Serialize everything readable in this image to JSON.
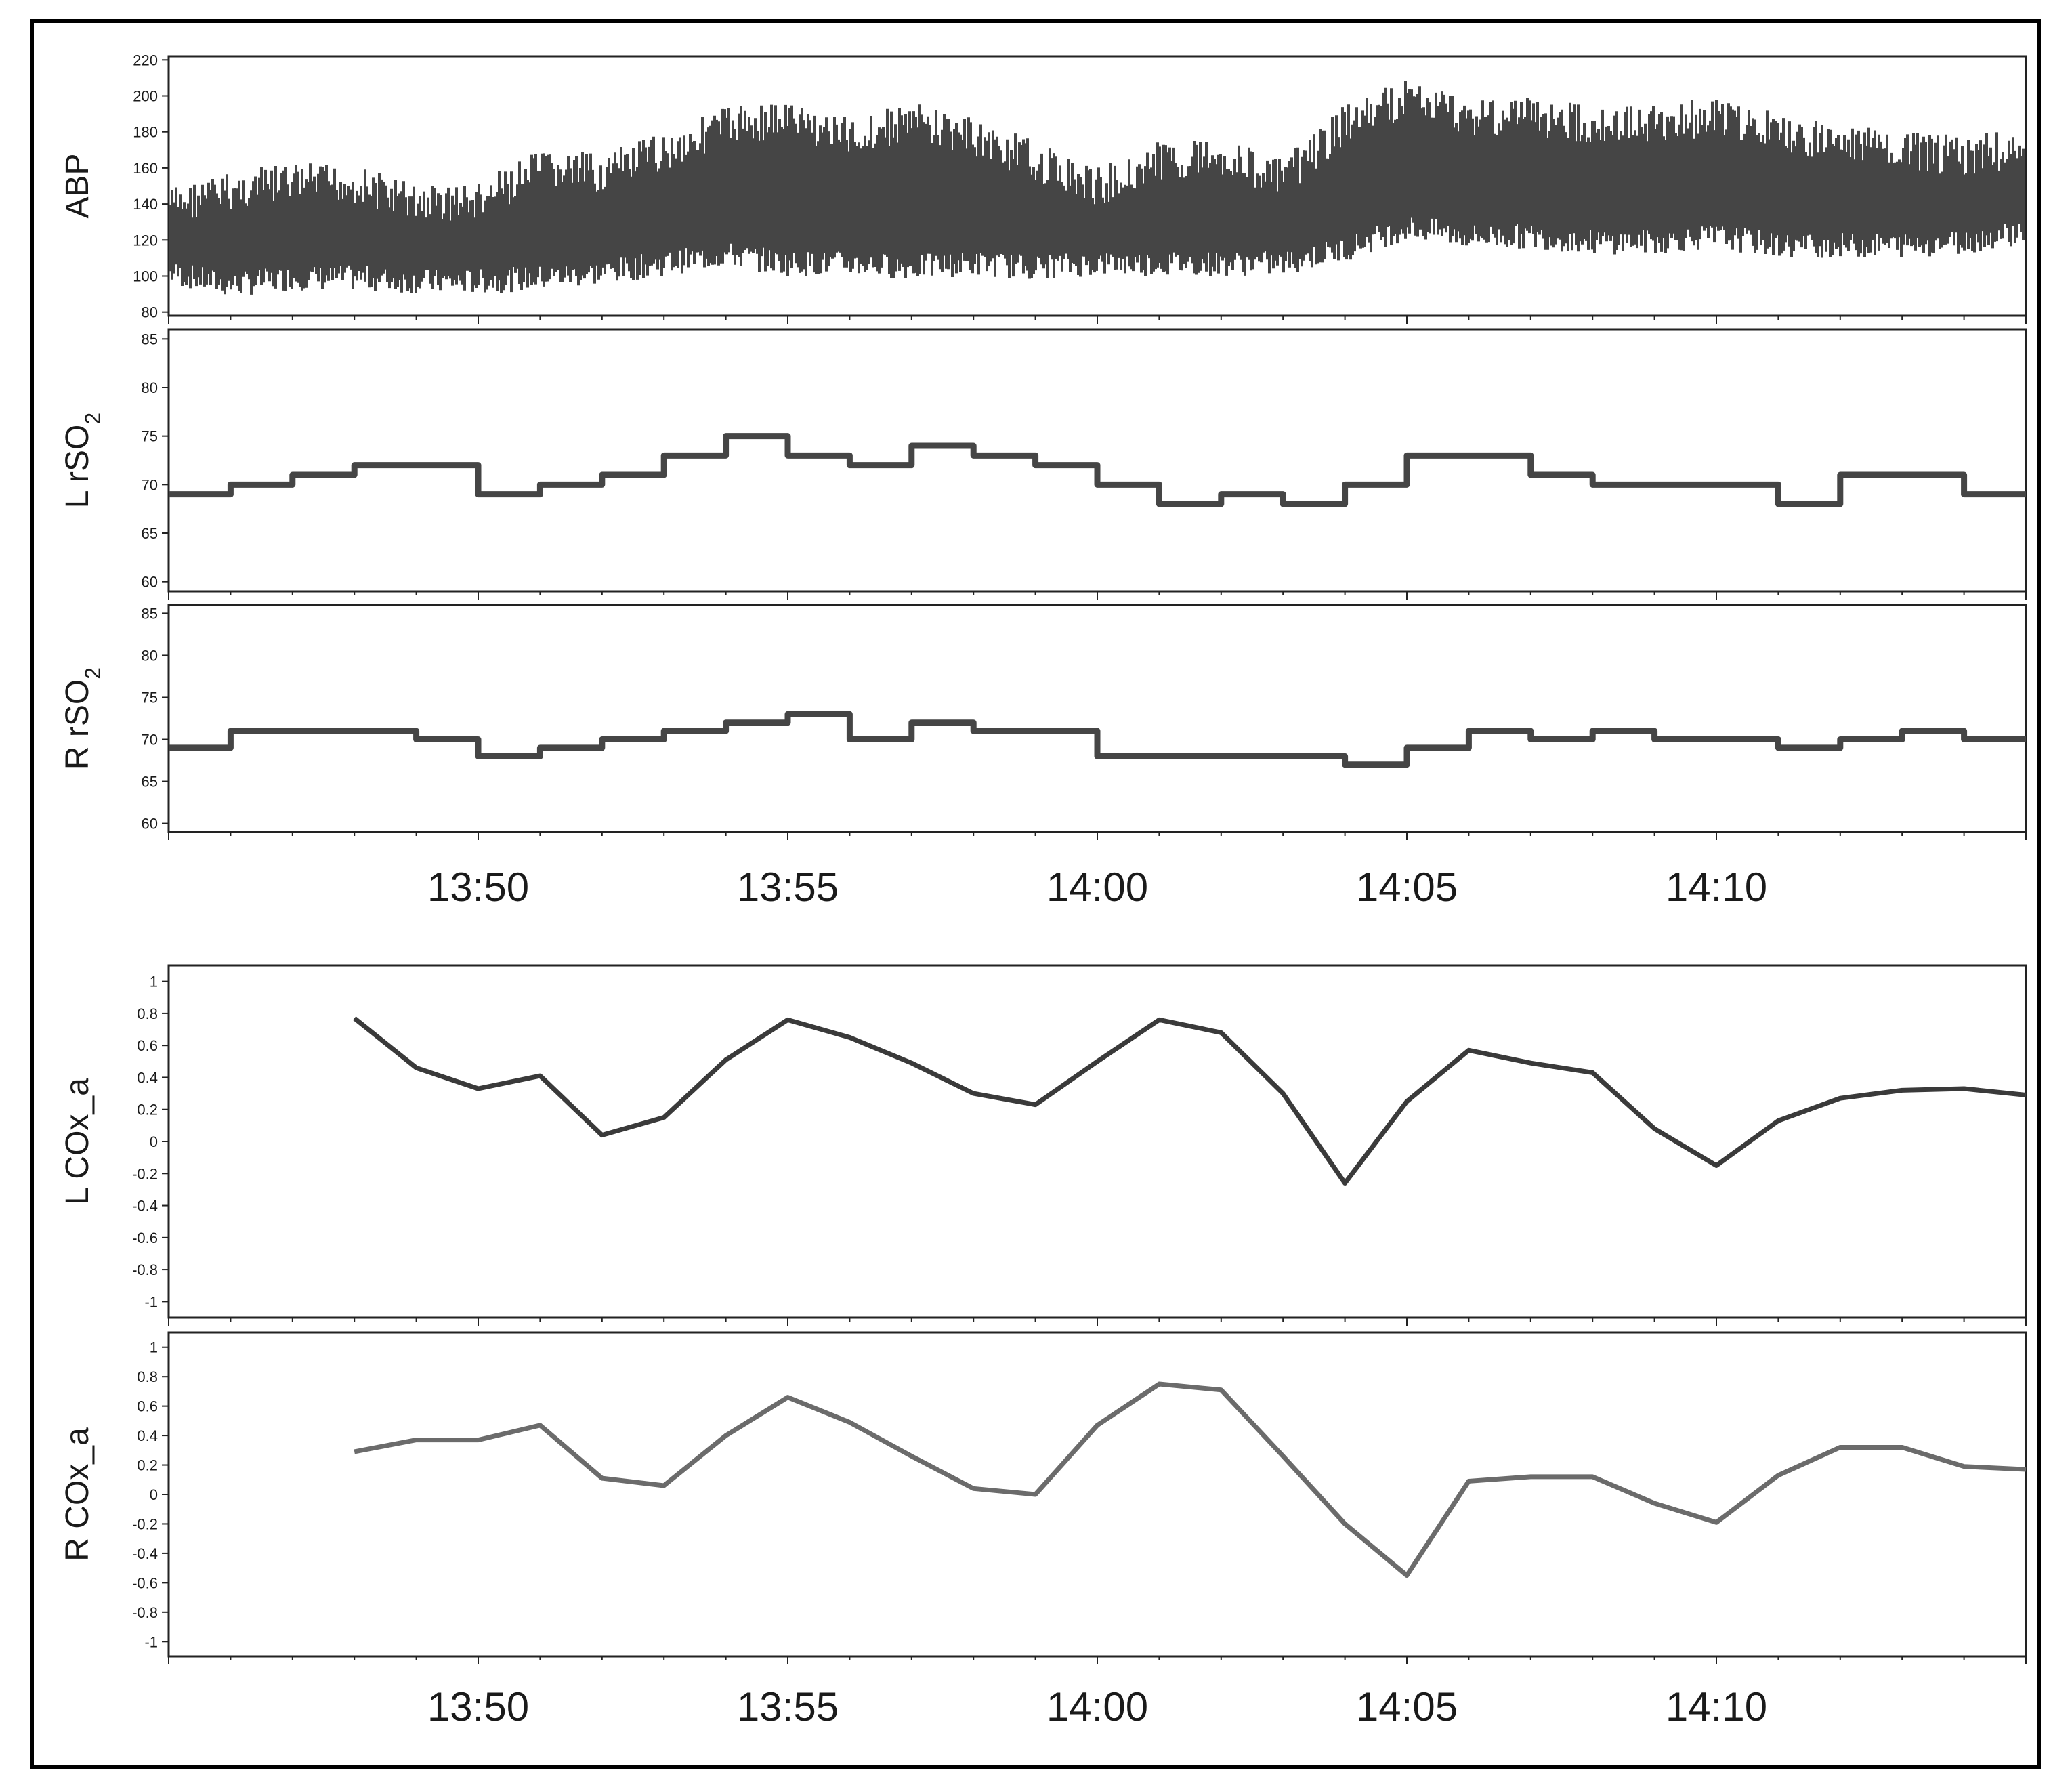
{
  "chart_data": [
    {
      "type": "line",
      "ylabel": "ABP",
      "ylim": [
        78,
        222
      ],
      "yticks": [
        80,
        100,
        120,
        140,
        160,
        180,
        200,
        220
      ],
      "xlim": [
        "13:45",
        "14:15"
      ],
      "series": [
        {
          "x": [
            "13:45",
            "13:46",
            "13:47",
            "13:48",
            "13:49",
            "13:50",
            "13:51",
            "13:52",
            "13:53",
            "13:54",
            "13:55",
            "13:56",
            "13:57",
            "13:58",
            "13:59",
            "14:00",
            "14:01",
            "14:02",
            "14:03",
            "14:04",
            "14:05",
            "14:06",
            "14:07",
            "14:08",
            "14:09",
            "14:10",
            "14:11",
            "14:12",
            "14:13",
            "14:14",
            "14:15"
          ],
          "upper": [
            150,
            158,
            163,
            162,
            152,
            152,
            170,
            168,
            180,
            195,
            198,
            188,
            197,
            188,
            175,
            160,
            175,
            178,
            165,
            195,
            210,
            200,
            200,
            195,
            195,
            200,
            190,
            185,
            180,
            178,
            182
          ],
          "lower": [
            95,
            88,
            92,
            92,
            90,
            90,
            92,
            95,
            100,
            105,
            100,
            100,
            98,
            100,
            98,
            100,
            100,
            100,
            100,
            108,
            120,
            115,
            115,
            112,
            112,
            115,
            110,
            110,
            110,
            112,
            118
          ],
          "color": "#454545"
        }
      ]
    },
    {
      "type": "line",
      "ylabel": "L rSO2",
      "ylim": [
        59,
        86
      ],
      "yticks": [
        60,
        65,
        70,
        75,
        80,
        85
      ],
      "xlim": [
        "13:45",
        "14:15"
      ],
      "series": [
        {
          "x": [
            "13:45",
            "13:46",
            "13:47",
            "13:48",
            "13:49",
            "13:50",
            "13:51",
            "13:52",
            "13:53",
            "13:54",
            "13:55",
            "13:56",
            "13:57",
            "13:58",
            "13:59",
            "14:00",
            "14:01",
            "14:02",
            "14:03",
            "14:04",
            "14:05",
            "14:06",
            "14:07",
            "14:08",
            "14:09",
            "14:10",
            "14:11",
            "14:12",
            "14:13",
            "14:14",
            "14:15"
          ],
          "values": [
            69,
            70,
            71,
            72,
            72,
            69,
            70,
            71,
            73,
            75,
            73,
            72,
            74,
            73,
            72,
            70,
            68,
            69,
            68,
            70,
            73,
            73,
            71,
            70,
            70,
            70,
            68,
            71,
            71,
            69,
            69
          ],
          "color": "#454545"
        }
      ]
    },
    {
      "type": "line",
      "ylabel": "R rSO2",
      "ylim": [
        59,
        86
      ],
      "yticks": [
        60,
        65,
        70,
        75,
        80,
        85
      ],
      "xlim": [
        "13:45",
        "14:15"
      ],
      "xticks": [
        "13:50",
        "13:55",
        "14:00",
        "14:05",
        "14:10"
      ],
      "series": [
        {
          "x": [
            "13:45",
            "13:46",
            "13:47",
            "13:48",
            "13:49",
            "13:50",
            "13:51",
            "13:52",
            "13:53",
            "13:54",
            "13:55",
            "13:56",
            "13:57",
            "13:58",
            "13:59",
            "14:00",
            "14:01",
            "14:02",
            "14:03",
            "14:04",
            "14:05",
            "14:06",
            "14:07",
            "14:08",
            "14:09",
            "14:10",
            "14:11",
            "14:12",
            "14:13",
            "14:14",
            "14:15"
          ],
          "values": [
            69,
            71,
            71,
            71,
            70,
            68,
            69,
            70,
            71,
            72,
            73,
            70,
            72,
            71,
            71,
            68,
            68,
            68,
            68,
            67,
            69,
            71,
            70,
            71,
            70,
            70,
            69,
            70,
            71,
            70,
            70
          ],
          "color": "#454545"
        }
      ]
    },
    {
      "type": "line",
      "ylabel": "L COx_a",
      "ylim": [
        -1.1,
        1.1
      ],
      "yticks": [
        1,
        0.8,
        0.6,
        0.4,
        0.2,
        0,
        -0.2,
        -0.4,
        -0.6,
        -0.8,
        -1
      ],
      "xlim": [
        "13:45",
        "14:15"
      ],
      "series": [
        {
          "x": [
            "13:48",
            "13:49",
            "13:50",
            "13:51",
            "13:52",
            "13:53",
            "13:54",
            "13:55",
            "13:56",
            "13:57",
            "13:58",
            "13:59",
            "14:00",
            "14:01",
            "14:02",
            "14:03",
            "14:04",
            "14:05",
            "14:06",
            "14:07",
            "14:08",
            "14:09",
            "14:10",
            "14:11",
            "14:12",
            "14:13",
            "14:14",
            "14:15"
          ],
          "values": [
            0.77,
            0.46,
            0.33,
            0.41,
            0.04,
            0.15,
            0.51,
            0.76,
            0.65,
            0.49,
            0.3,
            0.23,
            0.5,
            0.76,
            0.68,
            0.3,
            -0.26,
            0.25,
            0.57,
            0.49,
            0.43,
            0.08,
            -0.15,
            0.13,
            0.27,
            0.32,
            0.33,
            0.29
          ],
          "color": "#3a3a3a"
        }
      ]
    },
    {
      "type": "line",
      "ylabel": "R COx_a",
      "ylim": [
        -1.1,
        1.1
      ],
      "yticks": [
        1,
        0.8,
        0.6,
        0.4,
        0.2,
        0,
        -0.2,
        -0.4,
        -0.6,
        -0.8,
        -1
      ],
      "xlim": [
        "13:45",
        "14:15"
      ],
      "xticks": [
        "13:50",
        "13:55",
        "14:00",
        "14:05",
        "14:10"
      ],
      "series": [
        {
          "x": [
            "13:48",
            "13:49",
            "13:50",
            "13:51",
            "13:52",
            "13:53",
            "13:54",
            "13:55",
            "13:56",
            "13:57",
            "13:58",
            "13:59",
            "14:00",
            "14:01",
            "14:02",
            "14:03",
            "14:04",
            "14:05",
            "14:06",
            "14:07",
            "14:08",
            "14:09",
            "14:10",
            "14:11",
            "14:12",
            "14:13",
            "14:14",
            "14:15"
          ],
          "values": [
            0.29,
            0.37,
            0.37,
            0.47,
            0.11,
            0.06,
            0.4,
            0.66,
            0.49,
            0.26,
            0.04,
            0.0,
            0.47,
            0.75,
            0.71,
            0.26,
            -0.2,
            -0.55,
            0.09,
            0.12,
            0.12,
            -0.06,
            -0.19,
            0.13,
            0.32,
            0.32,
            0.19,
            0.17
          ],
          "color": "#6b6b6b"
        }
      ]
    }
  ]
}
